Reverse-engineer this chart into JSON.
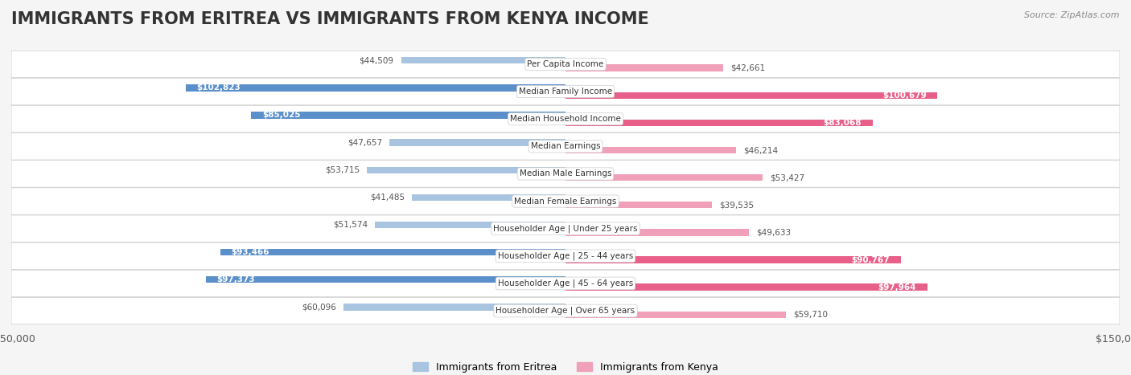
{
  "title": "IMMIGRANTS FROM ERITREA VS IMMIGRANTS FROM KENYA INCOME",
  "source": "Source: ZipAtlas.com",
  "categories": [
    "Per Capita Income",
    "Median Family Income",
    "Median Household Income",
    "Median Earnings",
    "Median Male Earnings",
    "Median Female Earnings",
    "Householder Age | Under 25 years",
    "Householder Age | 25 - 44 years",
    "Householder Age | 45 - 64 years",
    "Householder Age | Over 65 years"
  ],
  "eritrea_values": [
    44509,
    102823,
    85025,
    47657,
    53715,
    41485,
    51574,
    93466,
    97373,
    60096
  ],
  "kenya_values": [
    42661,
    100679,
    83068,
    46214,
    53427,
    39535,
    49633,
    90767,
    97964,
    59710
  ],
  "eritrea_labels": [
    "$44,509",
    "$102,823",
    "$85,025",
    "$47,657",
    "$53,715",
    "$41,485",
    "$51,574",
    "$93,466",
    "$97,373",
    "$60,096"
  ],
  "kenya_labels": [
    "$42,661",
    "$100,679",
    "$83,068",
    "$46,214",
    "$53,427",
    "$39,535",
    "$49,633",
    "$90,767",
    "$97,964",
    "$59,710"
  ],
  "eritrea_color_light": "#a8c4e0",
  "eritrea_color_dark": "#5b8fc9",
  "kenya_color_light": "#f0a0b8",
  "kenya_color_dark": "#e8608a",
  "max_value": 150000,
  "legend_eritrea": "Immigrants from Eritrea",
  "legend_kenya": "Immigrants from Kenya",
  "background_color": "#f5f5f5",
  "row_bg_color": "#ffffff",
  "title_fontsize": 15,
  "label_fontsize": 8.5,
  "axis_label_fontsize": 9
}
